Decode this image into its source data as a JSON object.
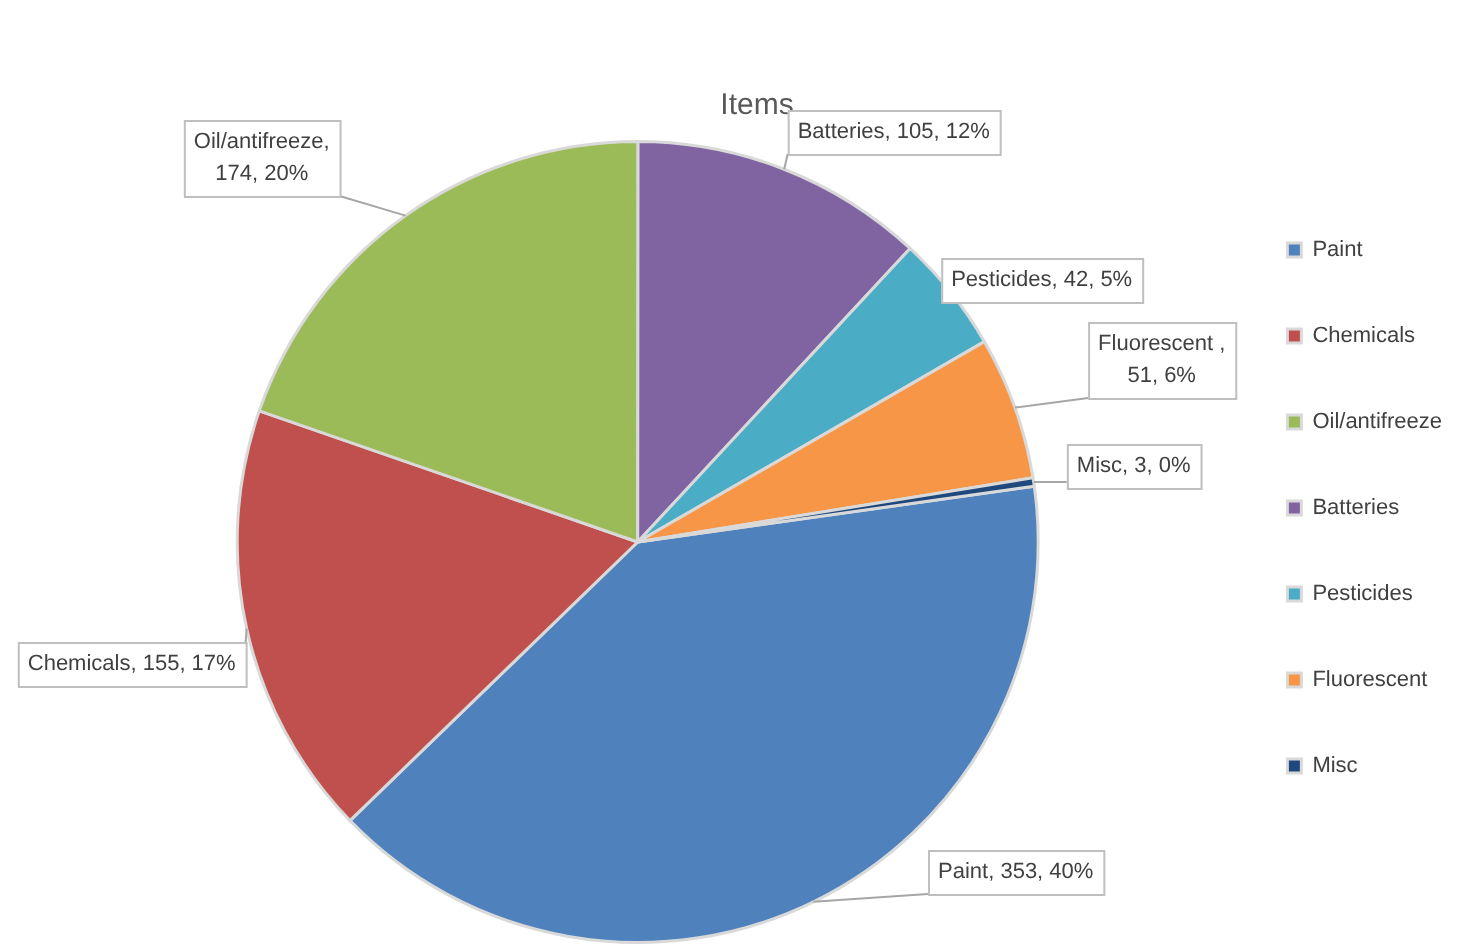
{
  "chart_data": {
    "type": "pie",
    "title": "Items",
    "categories": [
      "Paint",
      "Chemicals",
      "Oil/antifreeze",
      "Batteries",
      "Pesticides",
      "Fluorescent",
      "Misc"
    ],
    "values": [
      353,
      155,
      174,
      105,
      42,
      51,
      3
    ],
    "colors": [
      "#4f81bd",
      "#c0504d",
      "#9bbb59",
      "#8064a2",
      "#4bacc6",
      "#f79646",
      "#1f497d"
    ],
    "value_labels": [
      "Paint, 353, 40%",
      "Chemicals, 155, 17%",
      "Oil/antifreeze, 174, 20%",
      "Batteries, 105, 12%",
      "Pesticides, 42, 5%",
      "Fluorescent , 51, 6%",
      "Misc, 3, 0%"
    ],
    "legend": "right"
  }
}
